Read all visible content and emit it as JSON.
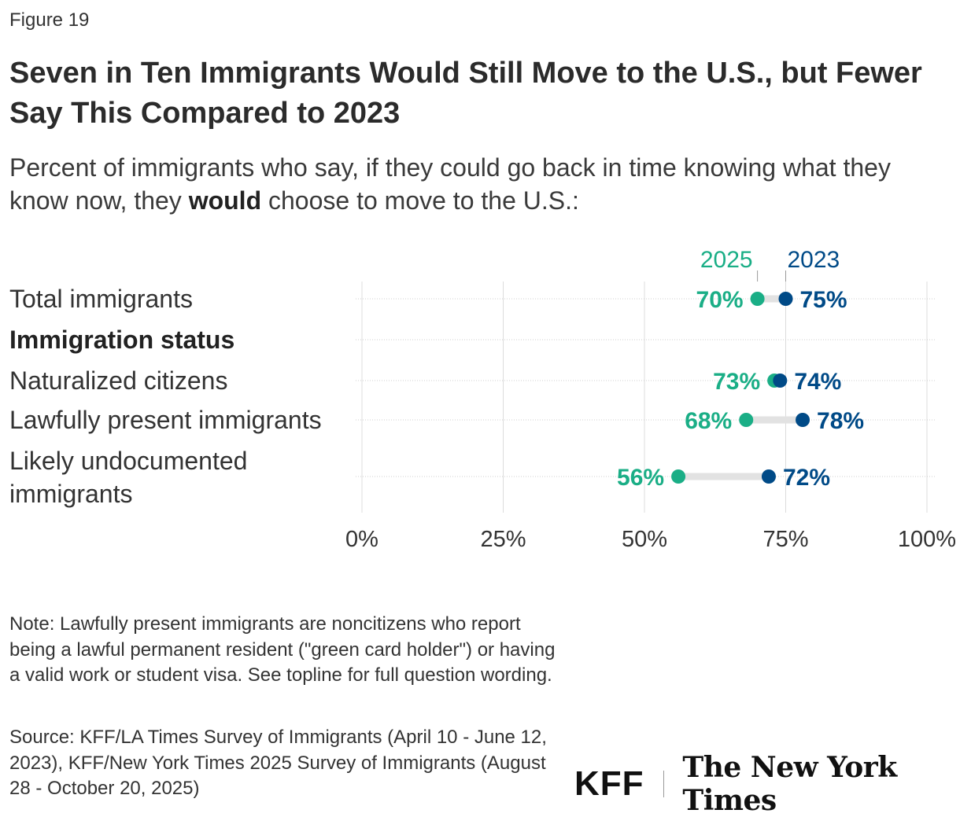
{
  "figure_label": "Figure 19",
  "title": "Seven in Ten Immigrants Would Still Move to the U.S., but Fewer Say This Compared to 2023",
  "subtitle_before": "Percent of immigrants who say, if they could go back in time knowing what they know now, they ",
  "subtitle_bold": "would",
  "subtitle_after": " choose to move to the U.S.:",
  "note": "Note: Lawfully present immigrants are noncitizens who report being a lawful permanent resident (\"green card holder\") or having a valid work or student visa. See topline for full question wording.",
  "source": "Source: KFF/LA Times Survey of Immigrants (April 10 - June 12, 2023), KFF/New York Times 2025 Survey of Immigrants (August 28 - October 20, 2025)",
  "logos": {
    "kff": "KFF",
    "nyt": "The New York Times"
  },
  "colors": {
    "y2025": "#1aae86",
    "y2023": "#004a87",
    "grid": "#d6d6d6",
    "connector": "#e1e1e1"
  },
  "chart_data": {
    "type": "dot-plot",
    "xlim": [
      0,
      100
    ],
    "x_ticks": [
      "0%",
      "25%",
      "50%",
      "75%",
      "100%"
    ],
    "series": [
      {
        "name": "2025",
        "color": "#1aae86"
      },
      {
        "name": "2023",
        "color": "#004a87"
      }
    ],
    "rows": [
      {
        "label": "Total immigrants",
        "header": false,
        "v2025": 70,
        "v2023": 75,
        "l2025": "70%",
        "l2023": "75%"
      },
      {
        "label": "Immigration status",
        "header": true
      },
      {
        "label": "Naturalized citizens",
        "header": false,
        "v2025": 73,
        "v2023": 74,
        "l2025": "73%",
        "l2023": "74%"
      },
      {
        "label": "Lawfully present immigrants",
        "header": false,
        "v2025": 68,
        "v2023": 78,
        "l2025": "68%",
        "l2023": "78%"
      },
      {
        "label": "Likely undocumented immigrants",
        "label_lines": [
          "Likely undocumented",
          "immigrants"
        ],
        "header": false,
        "v2025": 56,
        "v2023": 72,
        "l2025": "56%",
        "l2023": "72%"
      }
    ]
  }
}
